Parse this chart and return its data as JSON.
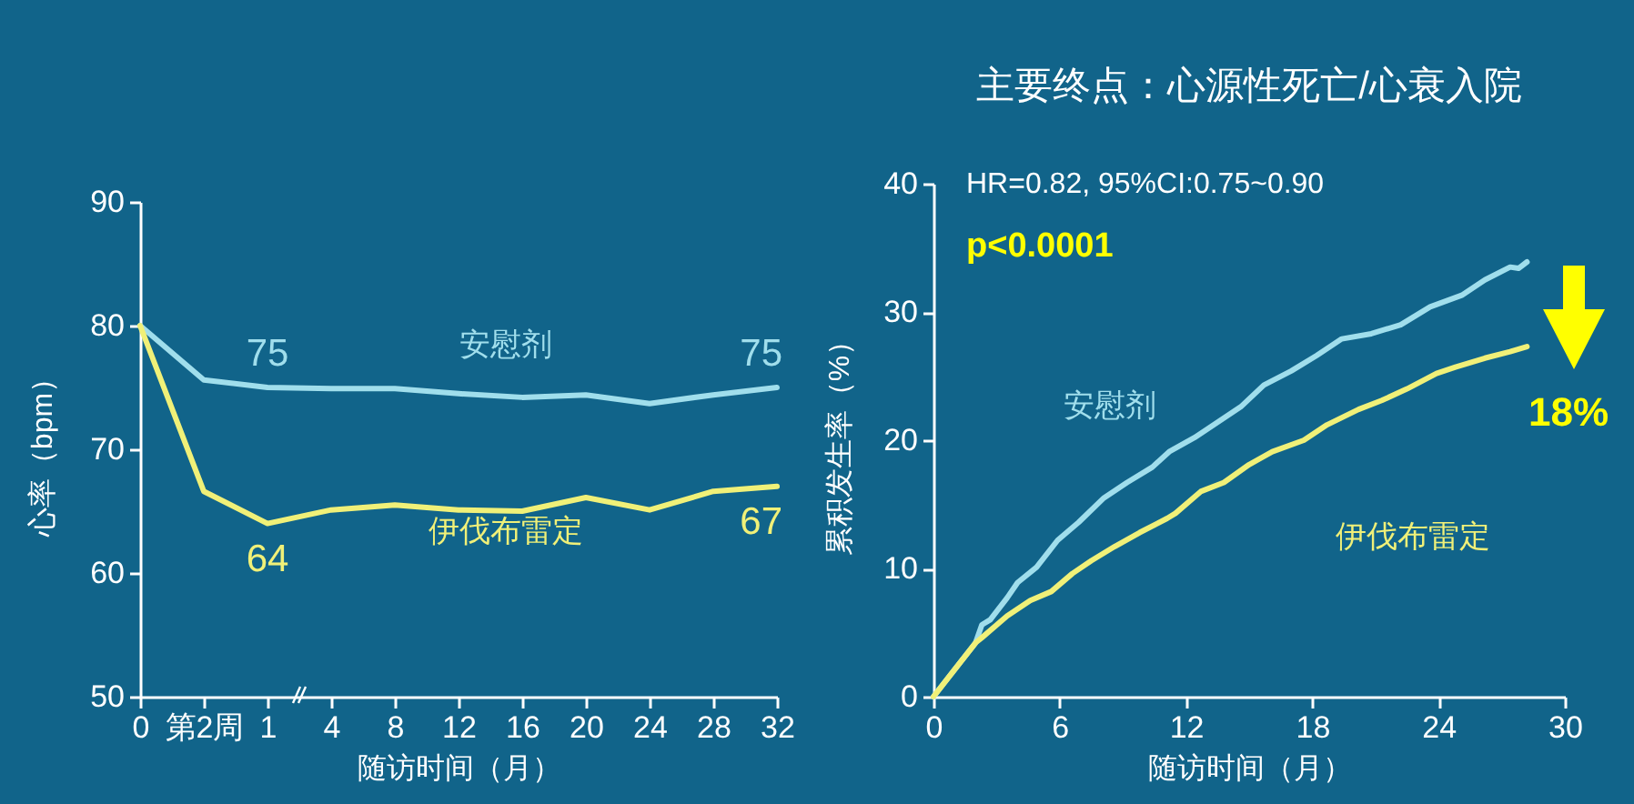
{
  "chart_data": [
    {
      "type": "line",
      "xlabel": "随访时间（月）",
      "ylabel": "心率（bpm）",
      "categories": [
        "0",
        "第2周",
        "1",
        "4",
        "8",
        "12",
        "16",
        "20",
        "24",
        "28",
        "32"
      ],
      "series": [
        {
          "name": "安慰剂",
          "color": "#a0deec",
          "values": [
            80,
            75.6,
            75,
            74.9,
            74.9,
            74.5,
            74.2,
            74.4,
            73.7,
            74.4,
            75
          ],
          "value_labels": [
            null,
            null,
            "75",
            null,
            null,
            null,
            null,
            null,
            null,
            null,
            "75"
          ]
        },
        {
          "name": "伊伐布雷定",
          "color": "#f0f078",
          "values": [
            80,
            66.6,
            64,
            65.1,
            65.5,
            65.1,
            65.0,
            66.1,
            65.1,
            66.6,
            67
          ],
          "value_labels": [
            null,
            null,
            "64",
            null,
            null,
            null,
            null,
            null,
            null,
            null,
            "67"
          ]
        }
      ],
      "ylim": [
        50,
        90
      ],
      "yticks": [
        50,
        60,
        70,
        80,
        90
      ]
    },
    {
      "type": "line",
      "title": "主要终点：心源性死亡/心衰入院",
      "xlabel": "随访时间（月）",
      "ylabel": "累积发生率（%）",
      "series": [
        {
          "name": "安慰剂",
          "color": "#a0deec",
          "x": [
            0,
            1.0,
            2.0,
            2.3,
            2.7,
            3.5,
            4.0,
            4.9,
            5.9,
            6.9,
            8.1,
            9.2,
            10.4,
            11.2,
            12.4,
            13.5,
            14.6,
            15.7,
            17.0,
            18.2,
            19.4,
            20.8,
            22.2,
            23.6,
            25.1,
            26.2,
            27.4,
            27.8,
            28.2
          ],
          "values": [
            0,
            2.1,
            4.2,
            5.6,
            6.0,
            7.7,
            8.9,
            10.1,
            12.2,
            13.6,
            15.5,
            16.7,
            17.9,
            19.1,
            20.2,
            21.4,
            22.6,
            24.3,
            25.4,
            26.6,
            27.9,
            28.3,
            29.0,
            30.4,
            31.3,
            32.5,
            33.5,
            33.4,
            33.9
          ]
        },
        {
          "name": "伊伐布雷定",
          "color": "#f0f078",
          "x": [
            0,
            1.0,
            2.0,
            2.3,
            3.5,
            4.6,
            5.6,
            6.6,
            7.5,
            8.6,
            9.8,
            11.1,
            11.5,
            12.7,
            13.8,
            15.0,
            16.1,
            17.6,
            18.7,
            20.2,
            21.3,
            22.5,
            23.9,
            24.8,
            26.2,
            27.4,
            28.2
          ],
          "values": [
            0,
            2.1,
            4.2,
            4.6,
            6.3,
            7.5,
            8.2,
            9.6,
            10.6,
            11.7,
            12.8,
            13.9,
            14.3,
            16.0,
            16.7,
            18.1,
            19.1,
            20.0,
            21.2,
            22.4,
            23.1,
            24.0,
            25.2,
            25.7,
            26.4,
            26.9,
            27.3
          ]
        }
      ],
      "xlim": [
        0,
        30
      ],
      "xticks": [
        0,
        6,
        12,
        18,
        24,
        30
      ],
      "ylim": [
        0,
        40
      ],
      "yticks": [
        0,
        10,
        20,
        30,
        40
      ],
      "annotations": [
        "HR=0.82, 95%CI:0.75~0.90",
        "p<0.0001",
        "18%"
      ]
    }
  ]
}
